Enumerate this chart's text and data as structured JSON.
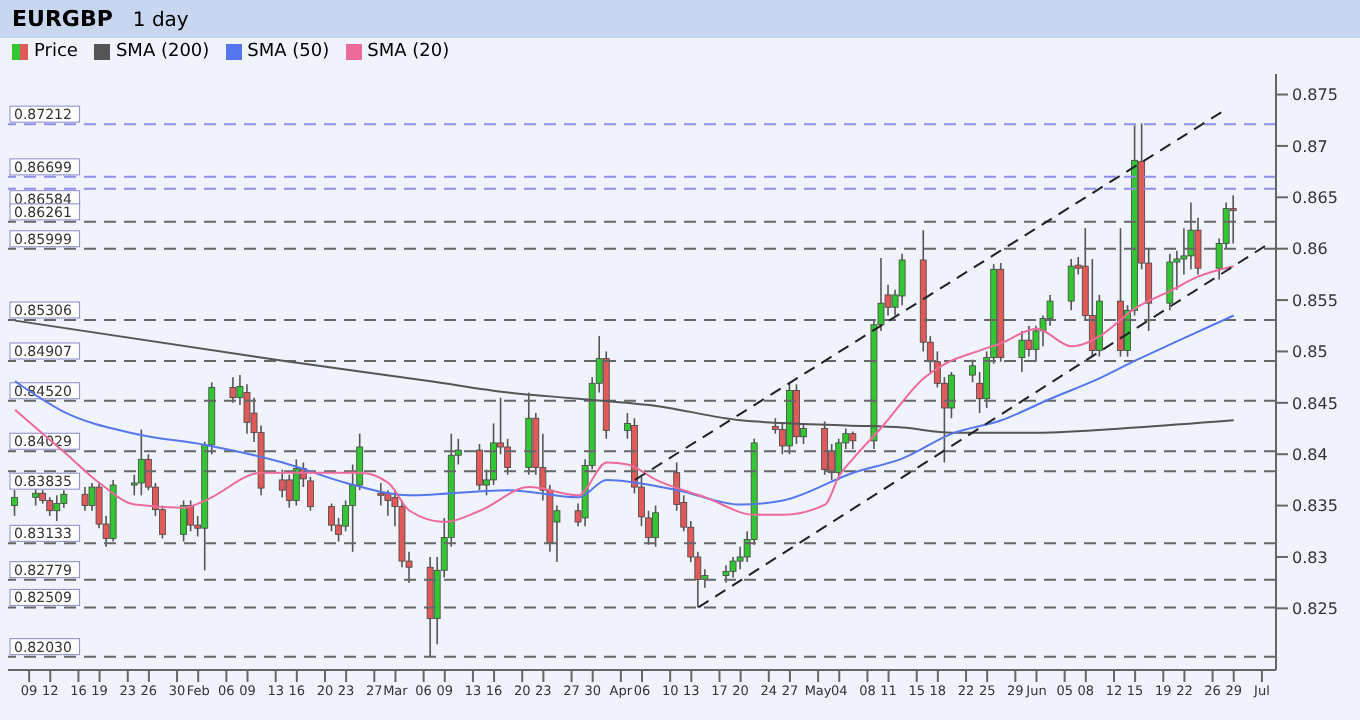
{
  "chart_data": {
    "type": "candlestick",
    "title": "EURGBP",
    "subtitle": "1 day",
    "xlim": [
      "--01-06",
      "--07-05"
    ],
    "xticks": [
      {
        "value": "--01-09",
        "label": "09"
      },
      {
        "value": "--01-12",
        "label": "12"
      },
      {
        "value": "--01-16",
        "label": "16"
      },
      {
        "value": "--01-19",
        "label": "19"
      },
      {
        "value": "--01-23",
        "label": "23"
      },
      {
        "value": "--01-26",
        "label": "26"
      },
      {
        "value": "--01-30",
        "label": "30"
      },
      {
        "value": "--02-02",
        "label": "Feb"
      },
      {
        "value": "--02-06",
        "label": "06"
      },
      {
        "value": "--02-09",
        "label": "09"
      },
      {
        "value": "--02-13",
        "label": "13"
      },
      {
        "value": "--02-16",
        "label": "16"
      },
      {
        "value": "--02-20",
        "label": "20"
      },
      {
        "value": "--02-23",
        "label": "23"
      },
      {
        "value": "--02-27",
        "label": "27"
      },
      {
        "value": "--03-02",
        "label": "Mar"
      },
      {
        "value": "--03-06",
        "label": "06"
      },
      {
        "value": "--03-09",
        "label": "09"
      },
      {
        "value": "--03-13",
        "label": "13"
      },
      {
        "value": "--03-16",
        "label": "16"
      },
      {
        "value": "--03-20",
        "label": "20"
      },
      {
        "value": "--03-23",
        "label": "23"
      },
      {
        "value": "--03-27",
        "label": "27"
      },
      {
        "value": "--03-30",
        "label": "30"
      },
      {
        "value": "--04-03",
        "label": "Apr"
      },
      {
        "value": "--04-06",
        "label": "06"
      },
      {
        "value": "--04-10",
        "label": "10"
      },
      {
        "value": "--04-13",
        "label": "13"
      },
      {
        "value": "--04-17",
        "label": "17"
      },
      {
        "value": "--04-20",
        "label": "20"
      },
      {
        "value": "--04-24",
        "label": "24"
      },
      {
        "value": "--04-27",
        "label": "27"
      },
      {
        "value": "--05-01",
        "label": "May"
      },
      {
        "value": "--05-04",
        "label": "04"
      },
      {
        "value": "--05-08",
        "label": "08"
      },
      {
        "value": "--05-11",
        "label": "11"
      },
      {
        "value": "--05-15",
        "label": "15"
      },
      {
        "value": "--05-18",
        "label": "18"
      },
      {
        "value": "--05-22",
        "label": "22"
      },
      {
        "value": "--05-25",
        "label": "25"
      },
      {
        "value": "--05-29",
        "label": "29"
      },
      {
        "value": "--06-01",
        "label": "Jun"
      },
      {
        "value": "--06-05",
        "label": "05"
      },
      {
        "value": "--06-08",
        "label": "08"
      },
      {
        "value": "--06-12",
        "label": "12"
      },
      {
        "value": "--06-15",
        "label": "15"
      },
      {
        "value": "--06-19",
        "label": "19"
      },
      {
        "value": "--06-22",
        "label": "22"
      },
      {
        "value": "--06-26",
        "label": "26"
      },
      {
        "value": "--06-29",
        "label": "29"
      },
      {
        "value": "--07-03",
        "label": "Jul"
      }
    ],
    "ylim": [
      0.819,
      0.877
    ],
    "yticks": [
      0.825,
      0.83,
      0.835,
      0.84,
      0.845,
      0.85,
      0.855,
      0.86,
      0.865,
      0.87,
      0.875
    ],
    "legend": "top left",
    "ref_lines": [
      {
        "axis": "y",
        "value": 0.87212,
        "label": "0.87212",
        "color": "#8f8fe8",
        "line_style": "dashed"
      },
      {
        "axis": "y",
        "value": 0.86699,
        "label": "0.86699",
        "color": "#8f8fe8",
        "line_style": "dashed"
      },
      {
        "axis": "y",
        "value": 0.86584,
        "label": "0.86584",
        "color": "#8f8fe8",
        "line_style": "dashed"
      },
      {
        "axis": "y",
        "value": 0.86261,
        "label": "0.86261",
        "color": "#666666",
        "line_style": "dashed"
      },
      {
        "axis": "y",
        "value": 0.85999,
        "label": "0.85999",
        "color": "#666666",
        "line_style": "dashed"
      },
      {
        "axis": "y",
        "value": 0.85306,
        "label": "0.85306",
        "color": "#666666",
        "line_style": "dashed"
      },
      {
        "axis": "y",
        "value": 0.84907,
        "label": "0.84907",
        "color": "#666666",
        "line_style": "dashed"
      },
      {
        "axis": "y",
        "value": 0.8452,
        "label": "0.84520",
        "color": "#666666",
        "line_style": "dashed"
      },
      {
        "axis": "y",
        "value": 0.84029,
        "label": "0.84029",
        "color": "#666666",
        "line_style": "dashed"
      },
      {
        "axis": "y",
        "value": 0.83835,
        "label": "0.83835",
        "color": "#666666",
        "line_style": "dashed"
      },
      {
        "axis": "y",
        "value": 0.83133,
        "label": "0.83133",
        "color": "#666666",
        "line_style": "dashed"
      },
      {
        "axis": "y",
        "value": 0.82779,
        "label": "0.82779",
        "color": "#666666",
        "line_style": "dashed"
      },
      {
        "axis": "y",
        "value": 0.82509,
        "label": "0.82509",
        "color": "#666666",
        "line_style": "dashed"
      },
      {
        "axis": "y",
        "value": 0.8203,
        "label": "0.82030",
        "color": "#666666",
        "line_style": "dashed"
      }
    ],
    "series": [
      {
        "type": "candlestick",
        "name": "Price",
        "x": [
          "--01-07",
          "--01-10",
          "--01-11",
          "--01-12",
          "--01-13",
          "--01-14",
          "--01-17",
          "--01-18",
          "--01-19",
          "--01-20",
          "--01-21",
          "--01-24",
          "--01-25",
          "--01-26",
          "--01-27",
          "--01-28",
          "--01-31",
          "--02-01",
          "--02-02",
          "--02-03",
          "--02-04",
          "--02-07",
          "--02-08",
          "--02-09",
          "--02-10",
          "--02-11",
          "--02-14",
          "--02-15",
          "--02-16",
          "--02-17",
          "--02-18",
          "--02-21",
          "--02-22",
          "--02-23",
          "--02-24",
          "--02-25",
          "--02-28",
          "--03-01",
          "--03-02",
          "--03-03",
          "--03-04",
          "--03-07",
          "--03-08",
          "--03-09",
          "--03-10",
          "--03-11",
          "--03-14",
          "--03-15",
          "--03-16",
          "--03-17",
          "--03-18",
          "--03-21",
          "--03-22",
          "--03-23",
          "--03-24",
          "--03-25",
          "--03-28",
          "--03-29",
          "--03-30",
          "--03-31",
          "--04-01",
          "--04-04",
          "--04-05",
          "--04-06",
          "--04-07",
          "--04-08",
          "--04-11",
          "--04-12",
          "--04-13",
          "--04-14",
          "--04-15",
          "--04-18",
          "--04-19",
          "--04-20",
          "--04-21",
          "--04-22",
          "--04-25",
          "--04-26",
          "--04-27",
          "--04-28",
          "--04-29",
          "--05-02",
          "--05-03",
          "--05-04",
          "--05-05",
          "--05-06",
          "--05-09",
          "--05-10",
          "--05-11",
          "--05-12",
          "--05-13",
          "--05-16",
          "--05-17",
          "--05-18",
          "--05-19",
          "--05-20",
          "--05-23",
          "--05-24",
          "--05-25",
          "--05-26",
          "--05-27",
          "--05-30",
          "--05-31",
          "--06-01",
          "--06-02",
          "--06-03",
          "--06-06",
          "--06-07",
          "--06-08",
          "--06-09",
          "--06-10",
          "--06-13",
          "--06-14",
          "--06-15",
          "--06-16",
          "--06-17",
          "--06-20",
          "--06-21",
          "--06-22",
          "--06-23",
          "--06-24",
          "--06-27",
          "--06-28",
          "--06-29"
        ],
        "ohlc": [
          [
            0.835,
            0.8365,
            0.834,
            0.8358
          ],
          [
            0.8358,
            0.8368,
            0.835,
            0.8362
          ],
          [
            0.8362,
            0.8365,
            0.8352,
            0.8355
          ],
          [
            0.8355,
            0.8358,
            0.834,
            0.8345
          ],
          [
            0.8345,
            0.836,
            0.8335,
            0.8352
          ],
          [
            0.8352,
            0.8365,
            0.8348,
            0.8361
          ],
          [
            0.8361,
            0.8368,
            0.8345,
            0.835
          ],
          [
            0.835,
            0.8372,
            0.8345,
            0.8368
          ],
          [
            0.8368,
            0.8372,
            0.8328,
            0.8332
          ],
          [
            0.8332,
            0.834,
            0.831,
            0.8318
          ],
          [
            0.8318,
            0.8375,
            0.8315,
            0.837
          ],
          [
            0.837,
            0.838,
            0.836,
            0.8372
          ],
          [
            0.8372,
            0.8424,
            0.836,
            0.8395
          ],
          [
            0.8395,
            0.84,
            0.8365,
            0.8368
          ],
          [
            0.8368,
            0.8372,
            0.834,
            0.8346
          ],
          [
            0.8346,
            0.835,
            0.8318,
            0.8322
          ],
          [
            0.8322,
            0.8355,
            0.8315,
            0.835
          ],
          [
            0.835,
            0.8355,
            0.8325,
            0.8331
          ],
          [
            0.8331,
            0.834,
            0.832,
            0.8328
          ],
          [
            0.8328,
            0.8412,
            0.8287,
            0.8409
          ],
          [
            0.8409,
            0.847,
            0.84,
            0.8465
          ],
          [
            0.8465,
            0.8475,
            0.845,
            0.8455
          ],
          [
            0.8455,
            0.8477,
            0.8448,
            0.8466
          ],
          [
            0.846,
            0.8468,
            0.842,
            0.8431
          ],
          [
            0.844,
            0.8455,
            0.8412,
            0.8421
          ],
          [
            0.8421,
            0.8428,
            0.836,
            0.8367
          ],
          [
            0.8375,
            0.8385,
            0.8358,
            0.8365
          ],
          [
            0.8375,
            0.838,
            0.8348,
            0.8355
          ],
          [
            0.8355,
            0.8395,
            0.835,
            0.8386
          ],
          [
            0.8386,
            0.8392,
            0.8368,
            0.8376
          ],
          [
            0.8374,
            0.8378,
            0.8345,
            0.8349
          ],
          [
            0.8349,
            0.8352,
            0.8325,
            0.8331
          ],
          [
            0.8331,
            0.8338,
            0.8315,
            0.8322
          ],
          [
            0.833,
            0.8355,
            0.8325,
            0.835
          ],
          [
            0.835,
            0.839,
            0.8305,
            0.837
          ],
          [
            0.837,
            0.842,
            0.8365,
            0.8407
          ],
          [
            0.8362,
            0.8372,
            0.835,
            0.836
          ],
          [
            0.8362,
            0.8365,
            0.834,
            0.8355
          ],
          [
            0.8358,
            0.8365,
            0.833,
            0.8349
          ],
          [
            0.8349,
            0.8355,
            0.829,
            0.8296
          ],
          [
            0.8296,
            0.8305,
            0.8275,
            0.829
          ],
          [
            0.829,
            0.83,
            0.8203,
            0.824
          ],
          [
            0.824,
            0.83,
            0.8215,
            0.8287
          ],
          [
            0.8287,
            0.8338,
            0.828,
            0.8319
          ],
          [
            0.8319,
            0.842,
            0.831,
            0.8399
          ],
          [
            0.8399,
            0.8415,
            0.839,
            0.8404
          ],
          [
            0.8404,
            0.841,
            0.8365,
            0.837
          ],
          [
            0.837,
            0.8385,
            0.836,
            0.8375
          ],
          [
            0.8375,
            0.843,
            0.837,
            0.8411
          ],
          [
            0.8411,
            0.8455,
            0.84,
            0.8407
          ],
          [
            0.8407,
            0.8415,
            0.838,
            0.8387
          ],
          [
            0.8387,
            0.846,
            0.838,
            0.8435
          ],
          [
            0.8435,
            0.844,
            0.838,
            0.8387
          ],
          [
            0.8387,
            0.842,
            0.8355,
            0.8365
          ],
          [
            0.8365,
            0.837,
            0.8305,
            0.8314
          ],
          [
            0.8334,
            0.835,
            0.8295,
            0.8345
          ],
          [
            0.8345,
            0.8352,
            0.833,
            0.8334
          ],
          [
            0.8338,
            0.8395,
            0.833,
            0.8389
          ],
          [
            0.8389,
            0.8475,
            0.8385,
            0.8469
          ],
          [
            0.8469,
            0.8515,
            0.846,
            0.8493
          ],
          [
            0.8493,
            0.85,
            0.8415,
            0.8423
          ],
          [
            0.8423,
            0.844,
            0.8415,
            0.843
          ],
          [
            0.8428,
            0.8435,
            0.8362,
            0.8368
          ],
          [
            0.8368,
            0.8378,
            0.833,
            0.8339
          ],
          [
            0.8338,
            0.8345,
            0.8312,
            0.8319
          ],
          [
            0.8319,
            0.835,
            0.831,
            0.8343
          ],
          [
            0.8382,
            0.8392,
            0.8345,
            0.8351
          ],
          [
            0.8353,
            0.836,
            0.8325,
            0.8329
          ],
          [
            0.8329,
            0.8335,
            0.8295,
            0.83
          ],
          [
            0.83,
            0.8305,
            0.8251,
            0.8278
          ],
          [
            0.8278,
            0.8288,
            0.827,
            0.8282
          ],
          [
            0.8282,
            0.8292,
            0.8275,
            0.8286
          ],
          [
            0.8286,
            0.83,
            0.828,
            0.8296
          ],
          [
            0.8296,
            0.831,
            0.8288,
            0.83
          ],
          [
            0.83,
            0.8325,
            0.8295,
            0.8317
          ],
          [
            0.8317,
            0.8415,
            0.8312,
            0.8411
          ],
          [
            0.8427,
            0.8435,
            0.842,
            0.8424
          ],
          [
            0.8424,
            0.843,
            0.84,
            0.8408
          ],
          [
            0.8408,
            0.847,
            0.84,
            0.8462
          ],
          [
            0.8462,
            0.8468,
            0.841,
            0.8417
          ],
          [
            0.8417,
            0.843,
            0.841,
            0.8425
          ],
          [
            0.8425,
            0.8432,
            0.838,
            0.8385
          ],
          [
            0.8403,
            0.841,
            0.8375,
            0.8382
          ],
          [
            0.8382,
            0.8415,
            0.8375,
            0.8411
          ],
          [
            0.8411,
            0.8425,
            0.8405,
            0.842
          ],
          [
            0.842,
            0.8422,
            0.8405,
            0.8413
          ],
          [
            0.8413,
            0.853,
            0.8405,
            0.8526
          ],
          [
            0.8526,
            0.8591,
            0.852,
            0.8547
          ],
          [
            0.8555,
            0.8565,
            0.8535,
            0.8543
          ],
          [
            0.8543,
            0.856,
            0.8535,
            0.8555
          ],
          [
            0.8554,
            0.8595,
            0.8545,
            0.8589
          ],
          [
            0.8589,
            0.8618,
            0.85,
            0.8509
          ],
          [
            0.8509,
            0.8515,
            0.848,
            0.849
          ],
          [
            0.849,
            0.85,
            0.8465,
            0.8469
          ],
          [
            0.8469,
            0.8475,
            0.8392,
            0.8445
          ],
          [
            0.8445,
            0.848,
            0.8435,
            0.8477
          ],
          [
            0.8477,
            0.8492,
            0.847,
            0.8486
          ],
          [
            0.8469,
            0.848,
            0.844,
            0.8454
          ],
          [
            0.8454,
            0.85,
            0.8445,
            0.8494
          ],
          [
            0.8494,
            0.8585,
            0.8488,
            0.858
          ],
          [
            0.858,
            0.8586,
            0.849,
            0.8494
          ],
          [
            0.8494,
            0.852,
            0.848,
            0.8511
          ],
          [
            0.8511,
            0.8525,
            0.8495,
            0.8502
          ],
          [
            0.8502,
            0.8525,
            0.849,
            0.852
          ],
          [
            0.852,
            0.8535,
            0.8505,
            0.8532
          ],
          [
            0.8532,
            0.8555,
            0.8525,
            0.8549
          ],
          [
            0.8549,
            0.859,
            0.854,
            0.8583
          ],
          [
            0.8584,
            0.8592,
            0.8575,
            0.8581
          ],
          [
            0.8583,
            0.862,
            0.853,
            0.8535
          ],
          [
            0.8535,
            0.859,
            0.8495,
            0.8501
          ],
          [
            0.8501,
            0.8555,
            0.8495,
            0.8549
          ],
          [
            0.8549,
            0.862,
            0.8495,
            0.8501
          ],
          [
            0.8501,
            0.8545,
            0.8495,
            0.854
          ],
          [
            0.854,
            0.872,
            0.8535,
            0.8686
          ],
          [
            0.8685,
            0.8722,
            0.858,
            0.8586
          ],
          [
            0.8586,
            0.86,
            0.852,
            0.8547
          ],
          [
            0.8547,
            0.8595,
            0.854,
            0.8587
          ],
          [
            0.8587,
            0.8598,
            0.856,
            0.859
          ],
          [
            0.859,
            0.862,
            0.8575,
            0.8593
          ],
          [
            0.8593,
            0.8645,
            0.858,
            0.8618
          ],
          [
            0.8618,
            0.863,
            0.8575,
            0.8581
          ],
          [
            0.8581,
            0.861,
            0.857,
            0.8605
          ],
          [
            0.8605,
            0.8645,
            0.86,
            0.8639
          ],
          [
            0.8639,
            0.8652,
            0.8605,
            0.8637
          ]
        ]
      },
      {
        "type": "line",
        "name": "SMA (200)",
        "color": "#555555",
        "x": [
          "--01-07",
          "--02-14",
          "--03-07",
          "--03-18",
          "--03-28",
          "--04-08",
          "--04-20",
          "--05-05",
          "--05-13",
          "--05-20",
          "--06-01",
          "--06-15",
          "--06-29"
        ],
        "values": [
          0.853,
          0.8491,
          0.8471,
          0.846,
          0.8454,
          0.8447,
          0.8433,
          0.8428,
          0.8426,
          0.8421,
          0.8421,
          0.8426,
          0.8433
        ]
      },
      {
        "type": "line",
        "name": "SMA (50)",
        "color": "#5577ee",
        "x": [
          "--01-07",
          "--01-14",
          "--01-24",
          "--02-03",
          "--02-14",
          "--02-23",
          "--03-04",
          "--03-18",
          "--03-28",
          "--04-01",
          "--04-11",
          "--04-20",
          "--04-26",
          "--05-06",
          "--05-13",
          "--05-20",
          "--05-27",
          "--06-03",
          "--06-10",
          "--06-15",
          "--06-21",
          "--06-29"
        ],
        "values": [
          0.8471,
          0.8441,
          0.842,
          0.8409,
          0.8392,
          0.8372,
          0.836,
          0.8365,
          0.8358,
          0.8375,
          0.8365,
          0.8351,
          0.8355,
          0.8382,
          0.8396,
          0.842,
          0.8433,
          0.8454,
          0.8474,
          0.8491,
          0.851,
          0.8535
        ]
      },
      {
        "type": "line",
        "name": "SMA (20)",
        "color": "#ee6a9a",
        "x": [
          "--01-07",
          "--01-14",
          "--01-19",
          "--01-24",
          "--01-31",
          "--02-03",
          "--02-11",
          "--02-18",
          "--02-25",
          "--03-01",
          "--03-04",
          "--03-09",
          "--03-14",
          "--03-21",
          "--03-28",
          "--04-01",
          "--04-04",
          "--04-08",
          "--04-15",
          "--04-22",
          "--04-26",
          "--05-02",
          "--05-04",
          "--05-06",
          "--05-10",
          "--05-16",
          "--05-19",
          "--05-24",
          "--05-27",
          "--06-01",
          "--06-06",
          "--06-10",
          "--06-15",
          "--06-20",
          "--06-24",
          "--06-29"
        ],
        "values": [
          0.8443,
          0.8402,
          0.8372,
          0.8351,
          0.8348,
          0.8355,
          0.8382,
          0.8382,
          0.8382,
          0.8372,
          0.8345,
          0.8334,
          0.8345,
          0.8368,
          0.836,
          0.8392,
          0.839,
          0.8375,
          0.8358,
          0.8341,
          0.8341,
          0.8351,
          0.8379,
          0.8396,
          0.8426,
          0.8474,
          0.8488,
          0.8501,
          0.8508,
          0.8522,
          0.8505,
          0.8515,
          0.8542,
          0.8559,
          0.8573,
          0.8583
        ]
      },
      {
        "type": "line",
        "color": "#222222",
        "line_style": "dashed",
        "x": [
          "--04-05",
          "--06-28"
        ],
        "values": [
          0.8375,
          0.8736
        ]
      },
      {
        "type": "line",
        "color": "#222222",
        "line_style": "dashed",
        "x": [
          "--04-14",
          "--07-04"
        ],
        "values": [
          0.8251,
          0.8605
        ]
      }
    ]
  }
}
